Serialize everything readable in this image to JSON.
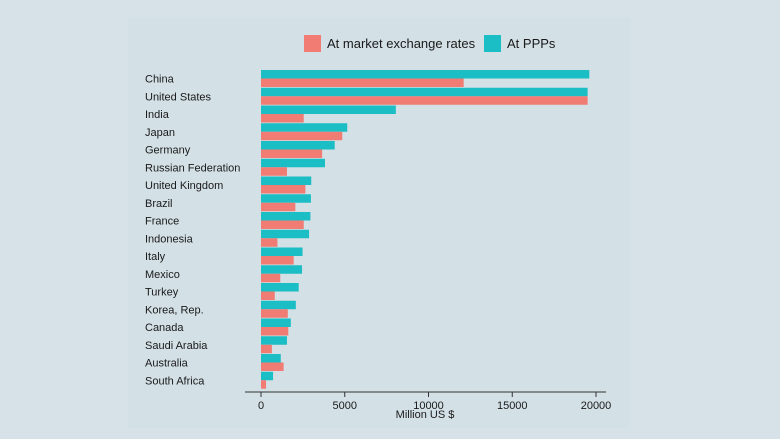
{
  "chart_data": {
    "type": "bar",
    "orientation": "horizontal",
    "title": "",
    "xlabel": "Million US $",
    "ylabel": "",
    "xlim": [
      0,
      20500
    ],
    "xticks": [
      0,
      5000,
      10000,
      15000,
      20000
    ],
    "grid": false,
    "legend_position": "top",
    "categories": [
      "China",
      "United States",
      "India",
      "Japan",
      "Germany",
      "Russian Federation",
      "United Kingdom",
      "Brazil",
      "France",
      "Indonesia",
      "Italy",
      "Mexico",
      "Turkey",
      "Korea, Rep.",
      "Canada",
      "Saudi Arabia",
      "Australia",
      "South Africa"
    ],
    "series": [
      {
        "name": "At PPPs",
        "color": "#1bbec4",
        "values": [
          19600,
          19500,
          8050,
          5150,
          4400,
          3820,
          3000,
          2980,
          2950,
          2870,
          2480,
          2450,
          2250,
          2080,
          1780,
          1550,
          1180,
          720
        ]
      },
      {
        "name": "At market exchange rates",
        "color": "#f07c74",
        "values": [
          12100,
          19500,
          2550,
          4850,
          3650,
          1550,
          2650,
          2050,
          2550,
          980,
          1950,
          1150,
          820,
          1600,
          1630,
          650,
          1350,
          300
        ]
      }
    ]
  }
}
